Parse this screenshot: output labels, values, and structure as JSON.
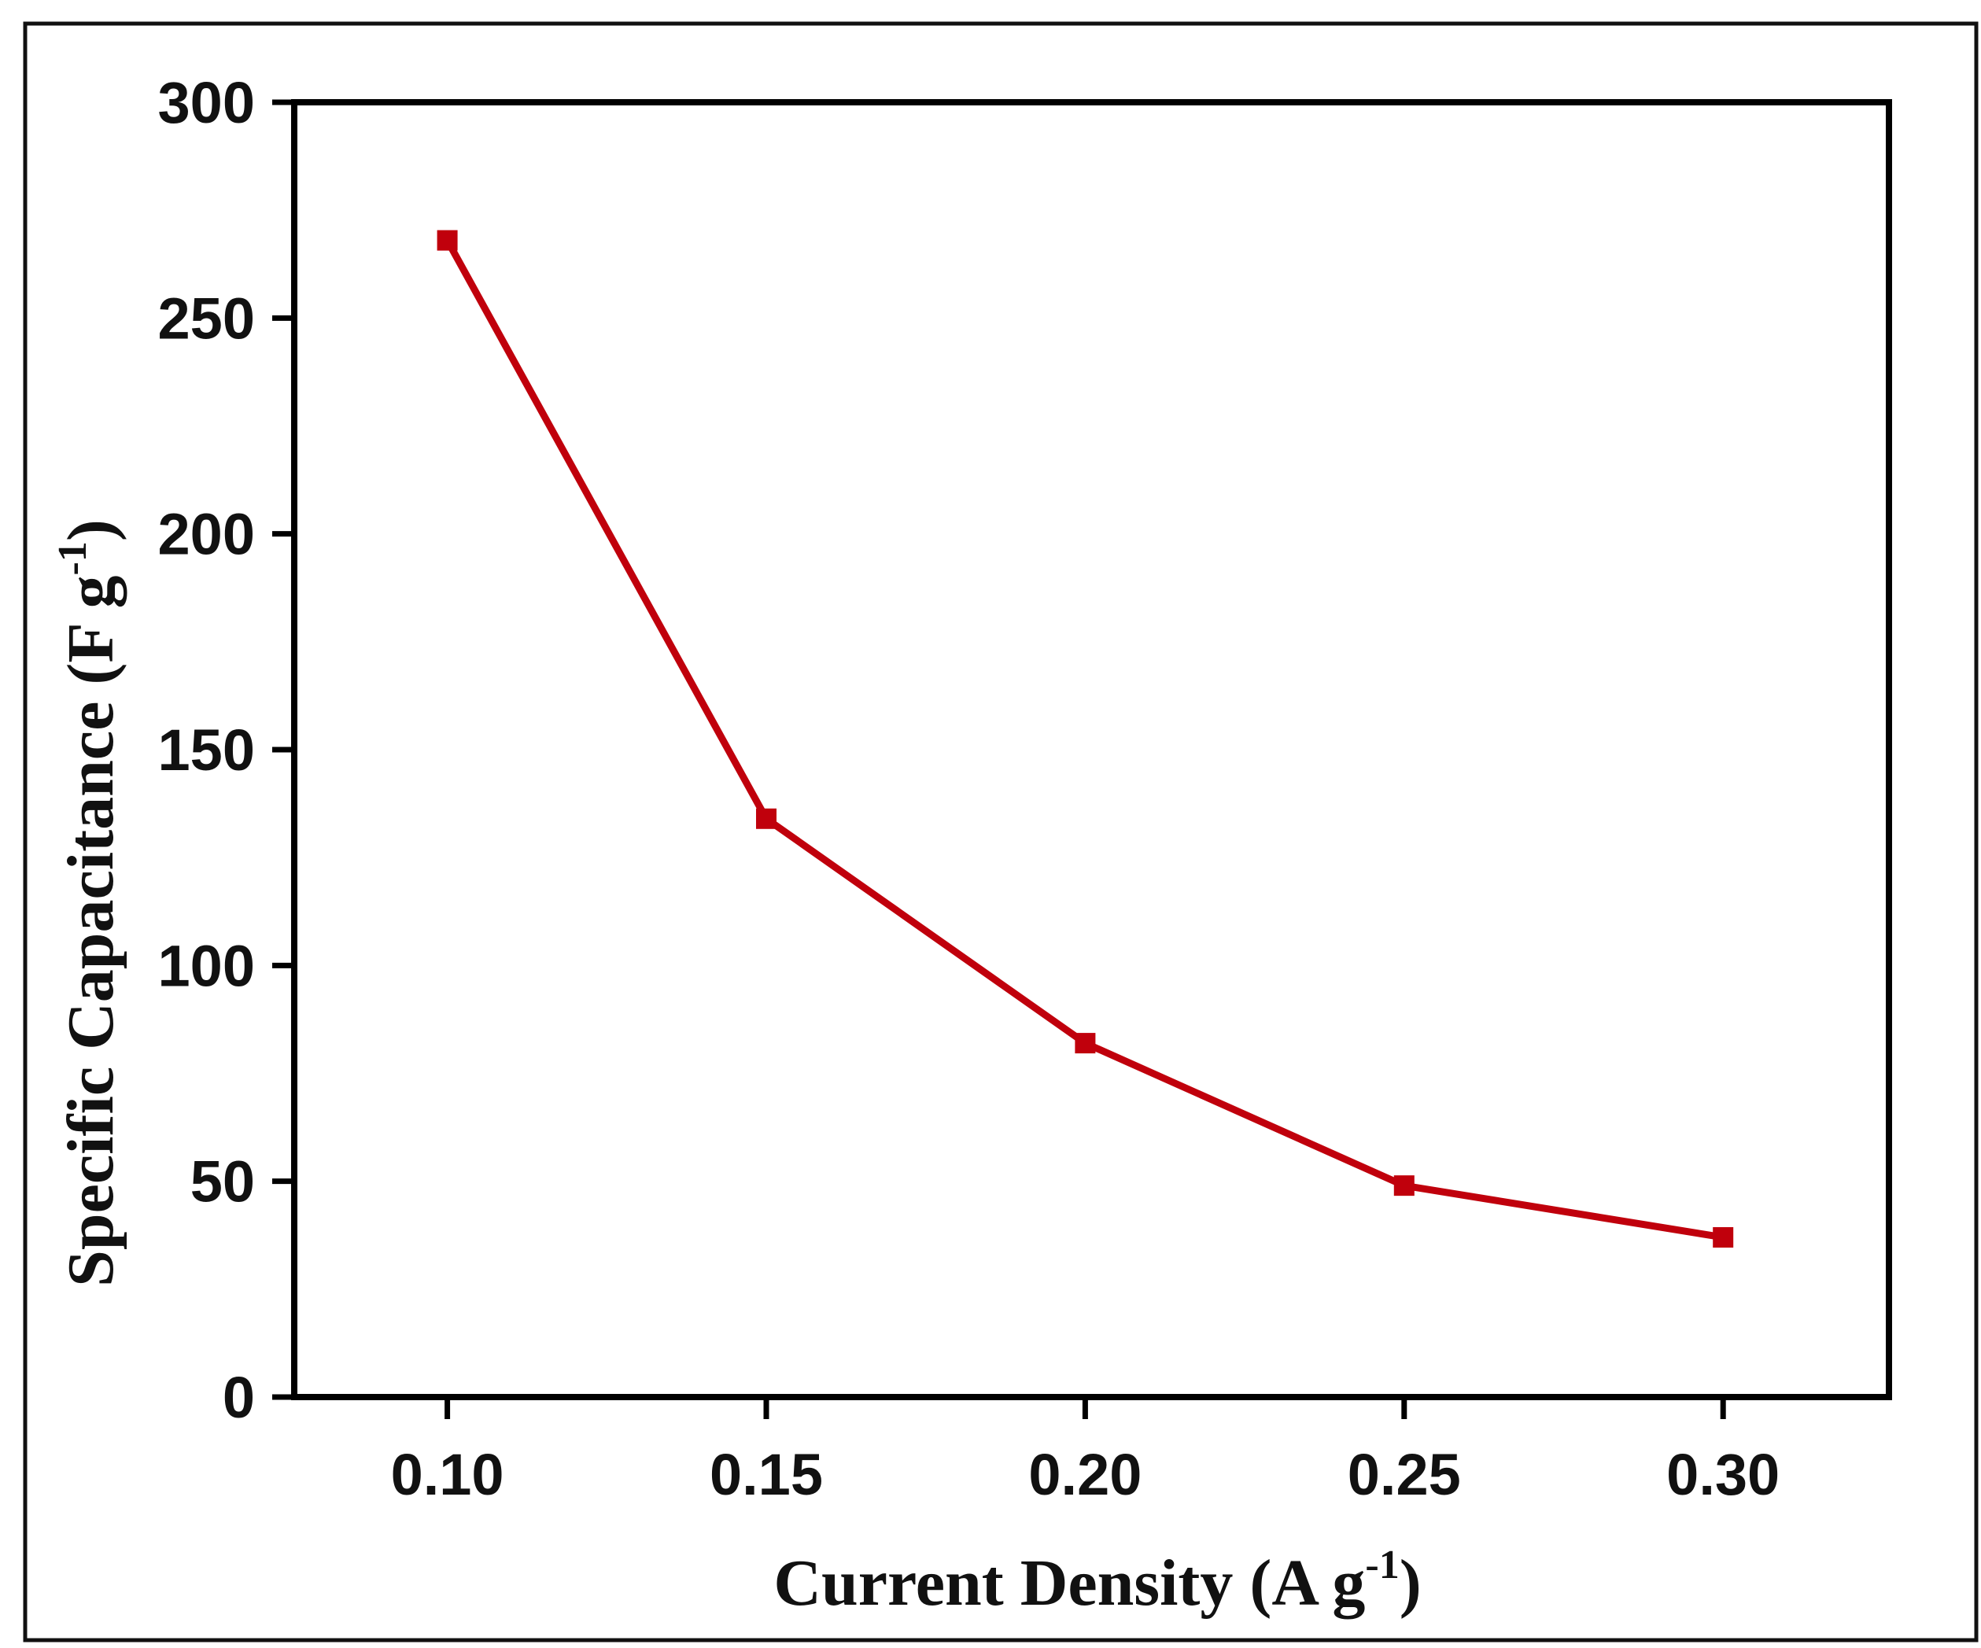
{
  "chart_data": {
    "type": "line",
    "xlabel": {
      "main": "Current Density (A g",
      "sup": "-1",
      "close": ")"
    },
    "ylabel": {
      "main": "Specific Capacitance (F g",
      "sup": "-1",
      "close": ")"
    },
    "xlim": [
      0.076,
      0.326
    ],
    "ylim": [
      0,
      300
    ],
    "xticks": [
      0.1,
      0.15,
      0.2,
      0.25,
      0.3
    ],
    "xtick_labels": [
      "0.10",
      "0.15",
      "0.20",
      "0.25",
      "0.30"
    ],
    "yticks": [
      0,
      50,
      100,
      150,
      200,
      250,
      300
    ],
    "ytick_labels": [
      "0",
      "50",
      "100",
      "150",
      "200",
      "250",
      "300"
    ],
    "grid": false,
    "series": [
      {
        "color": "#c0000c",
        "marker": "square",
        "x": [
          0.1,
          0.15,
          0.2,
          0.25,
          0.3
        ],
        "y": [
          268,
          134,
          82,
          49,
          37
        ]
      }
    ]
  }
}
